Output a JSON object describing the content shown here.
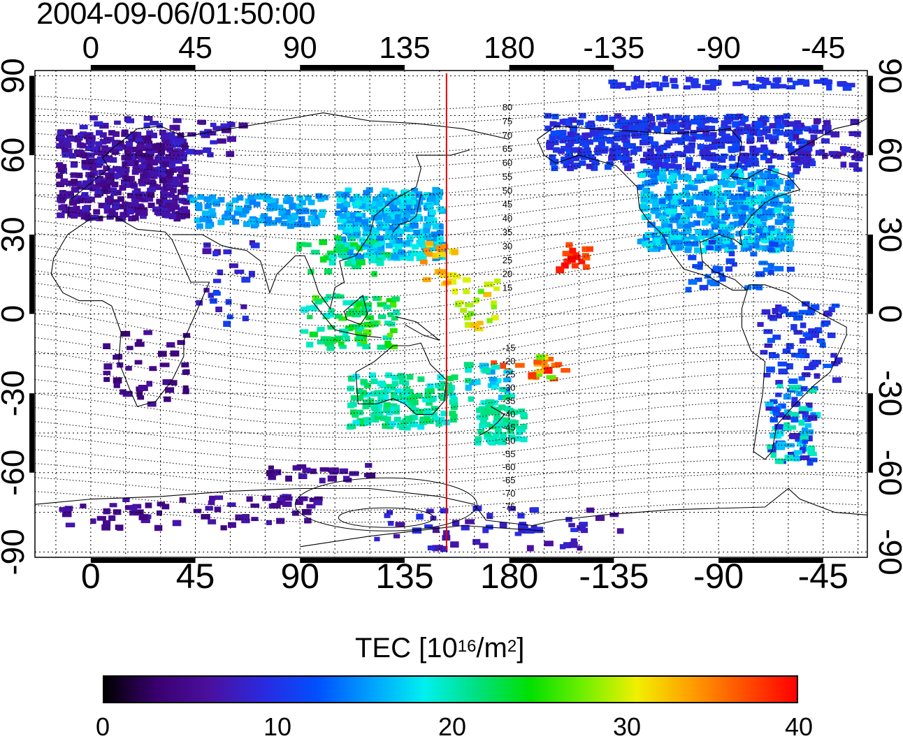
{
  "timestamp": "2004-09-06/01:50:00",
  "map": {
    "type": "world TEC map (cylindrical projection)",
    "x_axis": {
      "top_tick_labels": [
        "0",
        "45",
        "90",
        "135",
        "180",
        "-135",
        "-90",
        "-45"
      ],
      "bottom_tick_labels": [
        "0",
        "45",
        "90",
        "135",
        "180",
        "-135",
        "-90",
        "-45"
      ]
    },
    "y_axis": {
      "left_tick_labels": [
        "90",
        "60",
        "30",
        "0",
        "-30",
        "-60",
        "-90"
      ],
      "right_tick_labels": [
        "90",
        "60",
        "30",
        "0",
        "-30",
        "-60",
        "-90"
      ]
    },
    "lon_range": [
      -24,
      334
    ],
    "lat_range": [
      -92,
      92
    ],
    "grid": true,
    "marker_line": {
      "lon": 153,
      "color": "#e00000"
    },
    "magnetic_latitude_labels": [
      "80",
      "75",
      "70",
      "65",
      "60",
      "55",
      "50",
      "45",
      "40",
      "35",
      "30",
      "25",
      "20",
      "15",
      "-15",
      "-20",
      "-25",
      "-30",
      "-35",
      "-40",
      "-45",
      "-50",
      "-55",
      "-60",
      "-65",
      "-70",
      "-75"
    ]
  },
  "colorbar": {
    "label_main": "TEC  [10",
    "label_exp1": "16",
    "label_mid": "/m",
    "label_exp2": "2",
    "label_end": "]",
    "ticks": [
      "0",
      "10",
      "20",
      "30",
      "40"
    ],
    "range": [
      0,
      40
    ],
    "colors": [
      "#000000",
      "#3a0070",
      "#4a10a0",
      "#2a2ae0",
      "#0050ff",
      "#00a0ff",
      "#00f0f0",
      "#00e080",
      "#00e000",
      "#70f000",
      "#f0f000",
      "#ffa000",
      "#ff5000",
      "#ff0000"
    ]
  }
}
